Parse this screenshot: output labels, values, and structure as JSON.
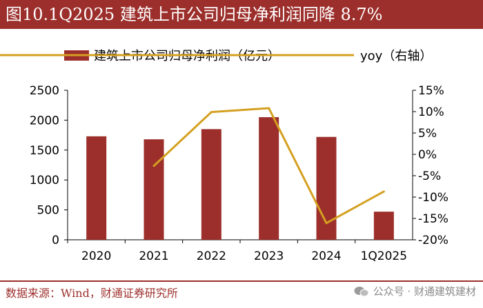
{
  "header": {
    "title": "图10.1Q2025 建筑上市公司归母净利润同降 8.7%"
  },
  "footer": {
    "source": "数据来源：Wind，财通证券研究所",
    "watermark": "公众号 · 财通建筑建材",
    "watermark_icon": "wechat-icon"
  },
  "colors": {
    "bar": "#9c2f2b",
    "line": "#d4a020",
    "accent": "#9c2f2b"
  },
  "chart_data": {
    "type": "bar",
    "categories": [
      "2020",
      "2021",
      "2022",
      "2023",
      "2024",
      "1Q2025"
    ],
    "series": [
      {
        "name": "建筑上市公司归母净利润（亿元）",
        "type": "bar",
        "axis": "left",
        "values": [
          1730,
          1680,
          1850,
          2050,
          1720,
          470
        ]
      },
      {
        "name": "yoy（右轴）",
        "type": "line",
        "axis": "right",
        "values": [
          null,
          -2.7,
          9.9,
          10.8,
          -16.1,
          -8.7
        ]
      }
    ],
    "y_left": {
      "min": 0,
      "max": 2500,
      "ticks": [
        0,
        500,
        1000,
        1500,
        2000,
        2500
      ]
    },
    "y_right": {
      "min": -20,
      "max": 15,
      "ticks": [
        "-20%",
        "-15%",
        "-10%",
        "-5%",
        "0%",
        "5%",
        "10%",
        "15%"
      ]
    },
    "legend": [
      "建筑上市公司归母净利润（亿元）",
      "yoy（右轴）"
    ]
  }
}
